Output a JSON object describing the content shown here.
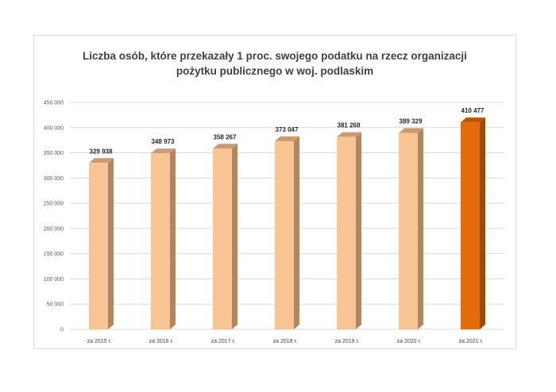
{
  "chart_data": {
    "type": "bar",
    "title_lines": [
      "Liczba osób, które przekazały 1 proc. swojego podatku na rzecz organizacji",
      "pożytku publicznego w woj. podlaskim"
    ],
    "categories": [
      "za 2015 r.",
      "za 2016 r.",
      "za 2017 r.",
      "za 2018 r.",
      "za 2019 r.",
      "za 2020 r.",
      "za 2021 r."
    ],
    "values": [
      329938,
      348973,
      358267,
      373047,
      381268,
      389329,
      410477
    ],
    "value_labels": [
      "329 938",
      "348 973",
      "358 267",
      "373 047",
      "381 268",
      "389 329",
      "410 477"
    ],
    "ylim": [
      0,
      450000
    ],
    "yticks": [
      0,
      50000,
      100000,
      150000,
      200000,
      250000,
      300000,
      350000,
      400000,
      450000
    ],
    "ytick_labels": [
      "0",
      "50 000",
      "100 000",
      "150 000",
      "200 000",
      "250 000",
      "300 000",
      "350 000",
      "400 000",
      "450 000"
    ],
    "grid": true,
    "colors": {
      "bar_front": "#f8c493",
      "bar_side": "#b38662",
      "bar_top": "#c99b74",
      "highlight_front": "#e26b0a",
      "highlight_side": "#9c4a06",
      "highlight_top": "#b8560a",
      "grid": "#d9d9d9"
    },
    "highlight_index": 6
  }
}
